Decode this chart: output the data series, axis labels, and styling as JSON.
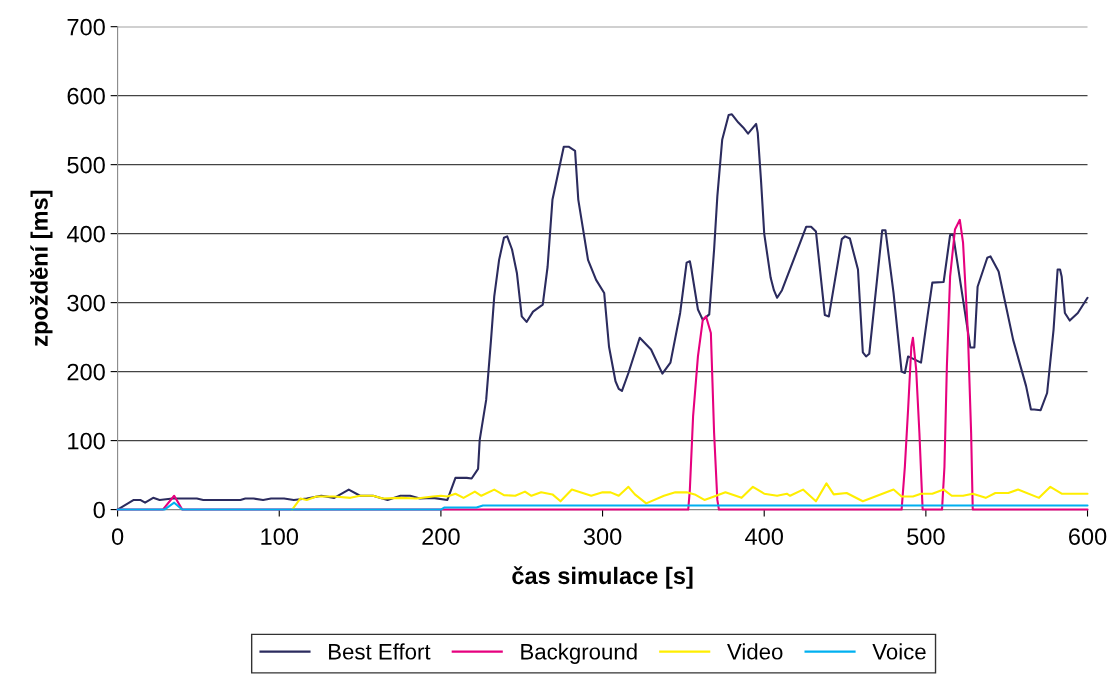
{
  "chart_data": {
    "type": "line",
    "xlabel": "čas simulace [s]",
    "ylabel": "zpoždění [ms]",
    "xlim": [
      0,
      600
    ],
    "xticks": [
      0,
      100,
      200,
      300,
      400,
      500,
      600
    ],
    "ylim": [
      0,
      700
    ],
    "yticks": [
      0,
      100,
      200,
      300,
      400,
      500,
      600,
      700
    ],
    "grid": "y",
    "legend": "bottom",
    "marker": "none",
    "line_style": "solid",
    "series": [
      {
        "name": "Best Effort",
        "color": "#2b2b5e",
        "x": [
          0,
          10,
          14,
          17,
          22,
          26,
          34,
          49,
          53,
          76,
          79,
          84,
          90,
          95,
          103,
          109,
          117,
          126,
          134,
          143,
          150,
          158,
          167,
          175,
          181,
          187,
          195,
          204,
          209,
          216,
          219,
          223,
          224,
          228,
          231,
          233,
          236,
          239,
          241,
          244,
          247,
          250,
          253,
          257,
          263,
          266,
          269,
          276,
          279,
          283,
          285,
          291,
          296,
          301,
          304,
          308,
          310,
          312,
          316,
          323,
          330,
          337,
          342,
          348,
          352,
          354,
          355,
          359,
          362,
          366,
          369,
          371,
          374,
          378,
          380,
          384,
          387,
          390,
          395,
          396,
          398,
          400,
          404,
          406,
          408,
          411,
          426,
          429,
          432,
          437.5,
          440,
          448,
          450,
          453,
          458,
          461,
          463,
          465,
          473,
          475,
          480,
          485,
          487,
          489,
          497,
          501,
          504,
          511,
          515,
          517,
          518,
          527.5,
          530,
          532,
          538,
          540,
          545,
          554,
          562,
          565,
          567,
          571,
          575,
          579,
          581.5,
          583,
          584,
          586,
          589,
          594,
          600
        ],
        "values": [
          0,
          14,
          14,
          10,
          17,
          14,
          16,
          16,
          14,
          14,
          16,
          16,
          14,
          16,
          16,
          14,
          16,
          20,
          17,
          29,
          20,
          20,
          14,
          20,
          20,
          16,
          17,
          14,
          46,
          46,
          45,
          59,
          101,
          159,
          246,
          309,
          362,
          394,
          396,
          377,
          343,
          280,
          272,
          287,
          297,
          352,
          449,
          526,
          526,
          520,
          449,
          362,
          333,
          314,
          236,
          186,
          175,
          172,
          198,
          249,
          232,
          197,
          213,
          285,
          358,
          360,
          348,
          290,
          275,
          283,
          377,
          454,
          536,
          572,
          573,
          561,
          554,
          545,
          559,
          546,
          478,
          400,
          336,
          318,
          307,
          318,
          410,
          410,
          403,
          282,
          280,
          392,
          396,
          393,
          348,
          228,
          222,
          226,
          405,
          405,
          314,
          200,
          198,
          222,
          213,
          280,
          329,
          330,
          398,
          398,
          381,
          235,
          235,
          323,
          365,
          367,
          345,
          246,
          179,
          145,
          145,
          144,
          169,
          261,
          348,
          348,
          338,
          285,
          274,
          285,
          307
        ]
      },
      {
        "name": "Background",
        "color": "#e6007e",
        "x": [
          0,
          28,
          35,
          40,
          353,
          354,
          356,
          359,
          362,
          364,
          367,
          368,
          369,
          371,
          372,
          485,
          487,
          489,
          491,
          492,
          494,
          496,
          498,
          510,
          511.5,
          513,
          515,
          518,
          521,
          523,
          526,
          528,
          529,
          600
        ],
        "values": [
          0,
          0,
          20,
          0,
          0,
          29,
          135,
          222,
          275,
          280,
          256,
          184,
          111,
          14,
          0,
          0,
          62,
          145,
          236,
          249,
          203,
          111,
          0,
          0,
          62,
          208,
          338,
          406,
          420,
          387,
          256,
          111,
          0,
          0
        ]
      },
      {
        "name": "Video",
        "color": "#ffee00",
        "x": [
          108,
          113,
          117,
          123,
          134,
          144,
          150,
          158,
          164,
          175,
          185,
          195,
          200,
          204,
          209,
          214,
          221,
          225,
          233,
          239,
          246,
          252,
          256,
          262,
          269,
          274,
          281,
          293,
          300,
          305,
          310,
          316,
          320,
          327,
          338,
          345,
          352,
          357,
          363,
          369,
          376,
          386,
          393,
          400,
          408,
          414,
          416,
          424,
          432,
          438.5,
          443,
          451,
          461,
          480,
          485,
          492,
          497,
          504,
          511,
          516,
          523,
          529,
          537,
          543,
          551,
          557,
          570,
          577,
          584,
          600
        ],
        "values": [
          0,
          16,
          14,
          19,
          19,
          17,
          20,
          20,
          16,
          17,
          16,
          19,
          20,
          19,
          23,
          17,
          26,
          20,
          29,
          21,
          20,
          26,
          20,
          25,
          22,
          12,
          29,
          20,
          25,
          25,
          20,
          33,
          22,
          9,
          20,
          25,
          25,
          22,
          14,
          19,
          25,
          17,
          33,
          23,
          20,
          23,
          20,
          29,
          12,
          38,
          22,
          24,
          12,
          29,
          19,
          19,
          23,
          23,
          29,
          20,
          20,
          23,
          17,
          24,
          24,
          29,
          17,
          33,
          23,
          23
        ]
      },
      {
        "name": "Voice",
        "color": "#00b0f0",
        "x": [
          0,
          29,
          35,
          40,
          200,
          202,
          222,
          226,
          600
        ],
        "values": [
          0,
          0,
          10,
          0,
          0,
          3,
          3,
          6,
          6
        ]
      }
    ]
  }
}
